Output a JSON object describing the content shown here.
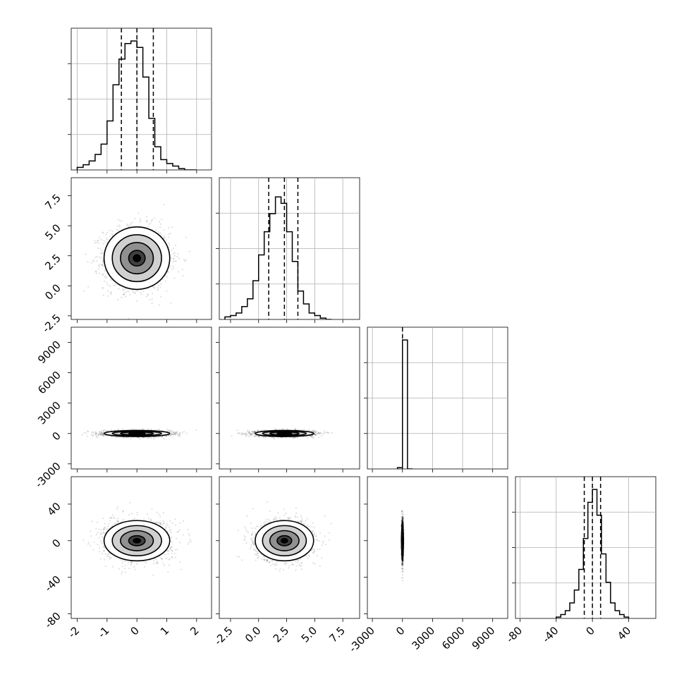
{
  "chart_data": [
    {
      "type": "histogram",
      "panel": "x0-marginal",
      "x_ticks": [
        "-2",
        "-1",
        "0",
        "1",
        "2"
      ],
      "xlim": [
        -2.2,
        2.5
      ],
      "bins": {
        "start": -2.0,
        "width": 0.2,
        "counts": [
          0.02,
          0.04,
          0.07,
          0.12,
          0.2,
          0.38,
          0.66,
          0.86,
          0.98,
          1.0,
          0.95,
          0.72,
          0.4,
          0.18,
          0.08,
          0.05,
          0.03,
          0.01,
          0.0,
          0.0
        ]
      },
      "quantiles": [
        -0.52,
        0.0,
        0.55
      ],
      "grid": true
    },
    {
      "type": "histogram",
      "panel": "x1-marginal",
      "x_ticks": [
        "-2.5",
        "0.0",
        "2.5",
        "5.0",
        "7.5"
      ],
      "xlim": [
        -3.5,
        9.0
      ],
      "bins": {
        "start": -3.0,
        "width": 0.5,
        "counts": [
          0.02,
          0.03,
          0.05,
          0.1,
          0.16,
          0.3,
          0.5,
          0.68,
          0.82,
          0.95,
          0.9,
          0.68,
          0.45,
          0.22,
          0.12,
          0.05,
          0.03,
          0.01,
          0.0
        ]
      },
      "quantiles": [
        0.9,
        2.3,
        3.5
      ],
      "grid": true
    },
    {
      "type": "histogram",
      "panel": "x2-marginal",
      "x_ticks": [
        "-3000",
        "0",
        "3000",
        "6000",
        "9000"
      ],
      "xlim": [
        -3500,
        10500
      ],
      "bins": {
        "start": -500,
        "width": 500,
        "counts": [
          0.01,
          1.0,
          0.0
        ]
      },
      "quantiles": [
        0,
        0
      ],
      "grid": true
    },
    {
      "type": "histogram",
      "panel": "x3-marginal",
      "x_ticks": [
        "-80",
        "-40",
        "0",
        "40"
      ],
      "xlim": [
        -85,
        70
      ],
      "bins": {
        "start": -40,
        "width": 5,
        "counts": [
          0.01,
          0.03,
          0.06,
          0.12,
          0.22,
          0.38,
          0.62,
          0.9,
          1.0,
          0.8,
          0.5,
          0.28,
          0.12,
          0.06,
          0.03,
          0.01
        ]
      },
      "quantiles": [
        -9,
        0,
        9
      ],
      "grid": true
    },
    {
      "type": "scatter-contour",
      "panel": "x1-vs-x0",
      "x_ticks": [
        "-2",
        "-1",
        "0",
        "1",
        "2"
      ],
      "y_ticks": [
        "-2.5",
        "0.0",
        "2.5",
        "5.0",
        "7.5"
      ],
      "xlim": [
        -2.2,
        2.5
      ],
      "ylim": [
        -2.8,
        9.0
      ],
      "center": [
        0.0,
        2.3
      ],
      "spread": [
        0.55,
        1.3
      ]
    },
    {
      "type": "scatter-contour",
      "panel": "x2-vs-x0",
      "x_ticks": [
        "-2",
        "-1",
        "0",
        "1",
        "2"
      ],
      "y_ticks": [
        "-3000",
        "0",
        "3000",
        "6000",
        "9000"
      ],
      "xlim": [
        -2.2,
        2.5
      ],
      "ylim": [
        -3500,
        10500
      ],
      "center": [
        0.0,
        0
      ],
      "spread": [
        0.55,
        150
      ]
    },
    {
      "type": "scatter-contour",
      "panel": "x2-vs-x1",
      "x_ticks": [
        "-2.5",
        "0.0",
        "2.5",
        "5.0",
        "7.5"
      ],
      "y_ticks": [
        "-3000",
        "0",
        "3000",
        "6000",
        "9000"
      ],
      "xlim": [
        -3.5,
        9.0
      ],
      "ylim": [
        -3500,
        10500
      ],
      "center": [
        2.3,
        0
      ],
      "spread": [
        1.3,
        150
      ]
    },
    {
      "type": "scatter-contour",
      "panel": "x3-vs-x0",
      "x_ticks": [
        "-2",
        "-1",
        "0",
        "1",
        "2"
      ],
      "y_ticks": [
        "-80",
        "-40",
        "0",
        "40"
      ],
      "xlim": [
        -2.2,
        2.5
      ],
      "ylim": [
        -85,
        70
      ],
      "center": [
        0.0,
        0
      ],
      "spread": [
        0.55,
        11
      ]
    },
    {
      "type": "scatter-contour",
      "panel": "x3-vs-x1",
      "x_ticks": [
        "-2.5",
        "0.0",
        "2.5",
        "5.0",
        "7.5"
      ],
      "y_ticks": [
        "-80",
        "-40",
        "0",
        "40"
      ],
      "xlim": [
        -3.5,
        9.0
      ],
      "ylim": [
        -85,
        70
      ],
      "center": [
        2.3,
        0
      ],
      "spread": [
        1.3,
        11
      ]
    },
    {
      "type": "scatter-contour",
      "panel": "x3-vs-x2",
      "x_ticks": [
        "-3000",
        "0",
        "3000",
        "6000",
        "9000"
      ],
      "y_ticks": [
        "-80",
        "-40",
        "0",
        "40"
      ],
      "xlim": [
        -3500,
        10500
      ],
      "ylim": [
        -85,
        70
      ],
      "center": [
        0,
        0
      ],
      "spread": [
        40,
        11
      ]
    }
  ]
}
